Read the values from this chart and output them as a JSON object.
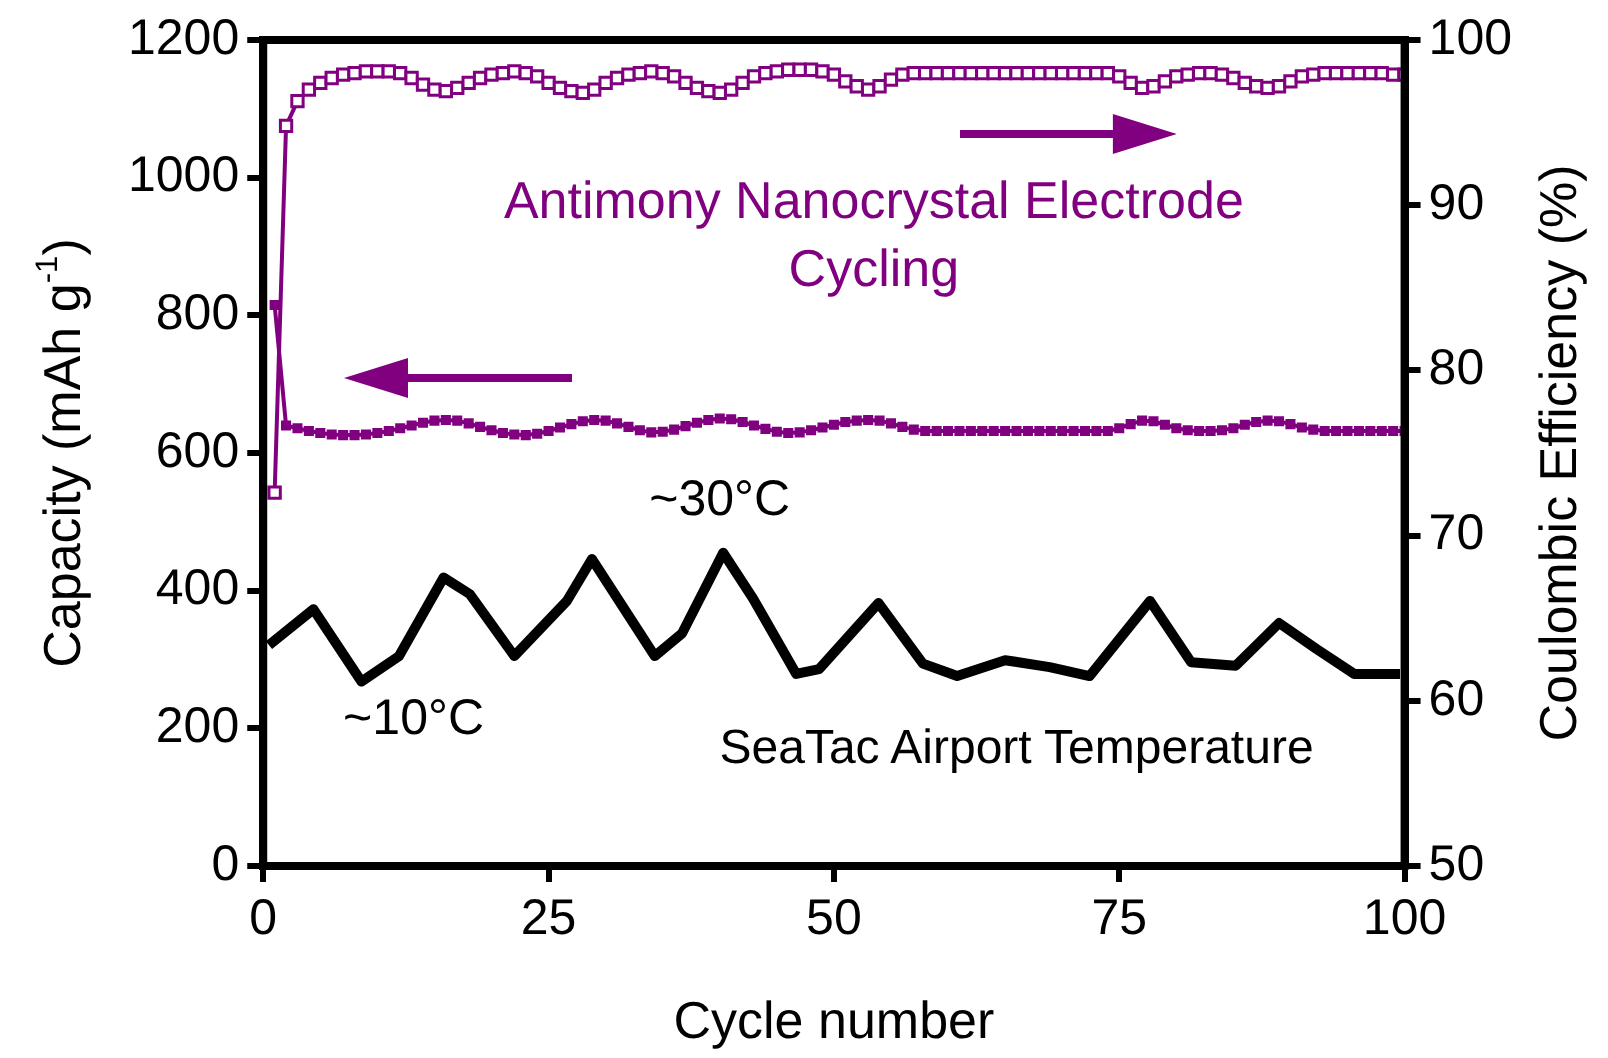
{
  "chart_data": {
    "type": "line",
    "xlabel": "Cycle number",
    "ylabel": "Capacity (mAh g$^{-1}$)",
    "y2label": "Coulombic Efficiency (%)",
    "xlim": [
      0,
      100
    ],
    "xticks": [
      0,
      25,
      50,
      75,
      100
    ],
    "ylim": [
      0,
      1200
    ],
    "yticks": [
      0,
      200,
      400,
      600,
      800,
      1000,
      1200
    ],
    "y2lim": [
      50,
      100
    ],
    "y2ticks": [
      50,
      60,
      70,
      80,
      90,
      100
    ],
    "grid": false,
    "legend": false,
    "x": [
      1,
      2,
      3,
      4,
      5,
      6,
      7,
      8,
      9,
      10,
      11,
      12,
      13,
      14,
      15,
      16,
      17,
      18,
      19,
      20,
      21,
      22,
      23,
      24,
      25,
      26,
      27,
      28,
      29,
      30,
      31,
      32,
      33,
      34,
      35,
      36,
      37,
      38,
      39,
      40,
      41,
      42,
      43,
      44,
      45,
      46,
      47,
      48,
      49,
      50,
      51,
      52,
      53,
      54,
      55,
      56,
      57,
      58,
      59,
      60,
      61,
      62,
      63,
      64,
      65,
      66,
      67,
      68,
      69,
      70,
      71,
      72,
      73,
      74,
      75,
      76,
      77,
      78,
      79,
      80,
      81,
      82,
      83,
      84,
      85,
      86,
      87,
      88,
      89,
      90,
      91,
      92,
      93,
      94,
      95,
      96,
      97,
      98,
      99,
      100
    ],
    "series": [
      {
        "color": "#800080",
        "marker": "square",
        "values": [
          815,
          640,
          636,
          632,
          629,
          627,
          626,
          626,
          627,
          629,
          632,
          636,
          640,
          644,
          647,
          648,
          647,
          643,
          638,
          633,
          629,
          627,
          626,
          628,
          632,
          637,
          642,
          646,
          648,
          647,
          643,
          638,
          633,
          630,
          631,
          634,
          639,
          644,
          648,
          650,
          649,
          645,
          640,
          635,
          631,
          629,
          630,
          633,
          637,
          641,
          645,
          647,
          648,
          647,
          643,
          638,
          634,
          632,
          632,
          632,
          632,
          632,
          632,
          632,
          632,
          632,
          632,
          632,
          632,
          632,
          632,
          632,
          632,
          632,
          636,
          642,
          647,
          646,
          641,
          636,
          633,
          632,
          632,
          633,
          636,
          641,
          645,
          647,
          646,
          642,
          637,
          634,
          632,
          632,
          632,
          632,
          632,
          632,
          632,
          632
        ]
      },
      {
        "color": "#800080",
        "marker": "square",
        "axis": "y2",
        "values": [
          72.6,
          94.8,
          96.3,
          97.0,
          97.4,
          97.7,
          97.9,
          98.0,
          98.1,
          98.1,
          98.1,
          98.0,
          97.7,
          97.3,
          97.0,
          96.9,
          97.1,
          97.4,
          97.7,
          97.9,
          98.0,
          98.1,
          98.0,
          97.8,
          97.4,
          97.1,
          96.9,
          96.8,
          97.0,
          97.4,
          97.7,
          97.9,
          98.0,
          98.1,
          98.0,
          97.8,
          97.4,
          97.1,
          96.9,
          96.8,
          97.0,
          97.4,
          97.8,
          98.0,
          98.1,
          98.2,
          98.2,
          98.2,
          98.1,
          97.9,
          97.5,
          97.2,
          97.0,
          97.2,
          97.6,
          97.9,
          98.0,
          98.0,
          98.0,
          98.0,
          98.0,
          98.0,
          98.0,
          98.0,
          98.0,
          98.0,
          98.0,
          98.0,
          98.0,
          98.0,
          98.0,
          98.0,
          98.0,
          98.0,
          97.8,
          97.4,
          97.1,
          97.2,
          97.5,
          97.8,
          97.9,
          98.0,
          98.0,
          97.9,
          97.7,
          97.4,
          97.2,
          97.1,
          97.2,
          97.5,
          97.8,
          97.9,
          98.0,
          98.0,
          98.0,
          98.0,
          98.0,
          98.0,
          97.9,
          97.9
        ]
      },
      {
        "name": "SeaTac Airport Temperature",
        "color": "#000000",
        "marker": "none",
        "x": [
          0.5,
          4.4,
          8.6,
          11.9,
          15.8,
          18.1,
          22,
          26.6,
          28.8,
          34.3,
          36.7,
          40.3,
          42.9,
          46.7,
          48.7,
          53.9,
          57.8,
          60.8,
          65,
          68.9,
          72.4,
          77.7,
          81.3,
          85.2,
          89,
          92.3,
          95.6,
          99.6
        ],
        "values": [
          321,
          373,
          268,
          305,
          419,
          395,
          305,
          385,
          446,
          305,
          338,
          455,
          389,
          279,
          286,
          382,
          294,
          276,
          299,
          289,
          276,
          385,
          296,
          291,
          353,
          315,
          279,
          279
        ]
      }
    ],
    "annotations": [
      "Antimony Nanocrystal Electrode Cycling",
      "~30°C",
      "~10°C"
    ]
  }
}
